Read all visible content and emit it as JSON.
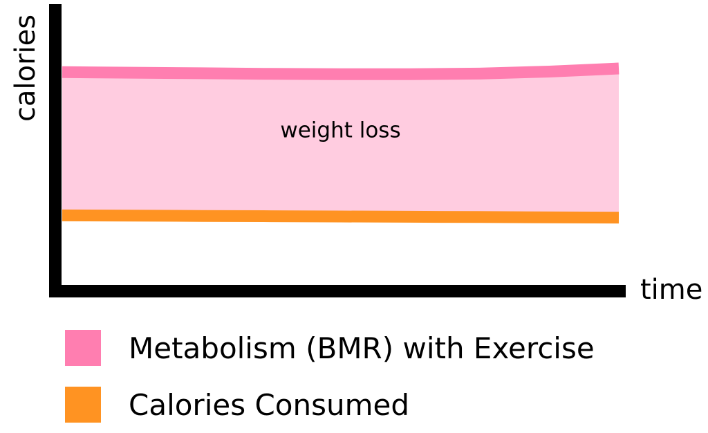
{
  "chart_data": {
    "type": "area",
    "xlabel": "time",
    "ylabel": "calories",
    "x": [
      0,
      1,
      2,
      3,
      4,
      5,
      6,
      7,
      8
    ],
    "xlim": [
      0,
      8
    ],
    "ylim": [
      0,
      100
    ],
    "grid": false,
    "legend_position": "bottom-left",
    "series": [
      {
        "name": "Metabolism (BMR) with Exercise",
        "color": "#ff7eb0",
        "values": [
          77,
          76.8,
          76.6,
          76.4,
          76.3,
          76.3,
          76.5,
          77.2,
          78.3
        ]
      },
      {
        "name": "Calories Consumed",
        "color": "#ff9322",
        "values": [
          26.5,
          26.4,
          26.3,
          26.2,
          26.1,
          26.0,
          25.9,
          25.8,
          25.7
        ]
      }
    ],
    "fill_between": {
      "color": "#ffcce0"
    },
    "annotations": [
      {
        "text": "weight loss",
        "x": 4,
        "y": 54
      }
    ]
  }
}
